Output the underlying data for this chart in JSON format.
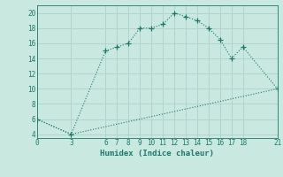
{
  "xlabel": "Humidex (Indice chaleur)",
  "bg_color": "#c8e8e0",
  "grid_color": "#b0d0cc",
  "line_color": "#1a7a6a",
  "curve1_x": [
    0,
    3,
    6,
    7,
    8,
    9,
    10,
    11,
    12,
    13,
    14,
    15,
    16,
    17,
    18,
    21
  ],
  "curve1_y": [
    6,
    4,
    15,
    15.5,
    16,
    18,
    18,
    18.5,
    20,
    19.5,
    19,
    18,
    16.5,
    14,
    15.5,
    10
  ],
  "curve2_x": [
    0,
    3,
    21
  ],
  "curve2_y": [
    6,
    4,
    10
  ],
  "xticks": [
    0,
    3,
    6,
    7,
    8,
    9,
    10,
    11,
    12,
    13,
    14,
    15,
    16,
    17,
    18,
    21
  ],
  "yticks": [
    4,
    6,
    8,
    10,
    12,
    14,
    16,
    18,
    20
  ],
  "xlim": [
    0,
    21
  ],
  "ylim": [
    3.5,
    21
  ]
}
